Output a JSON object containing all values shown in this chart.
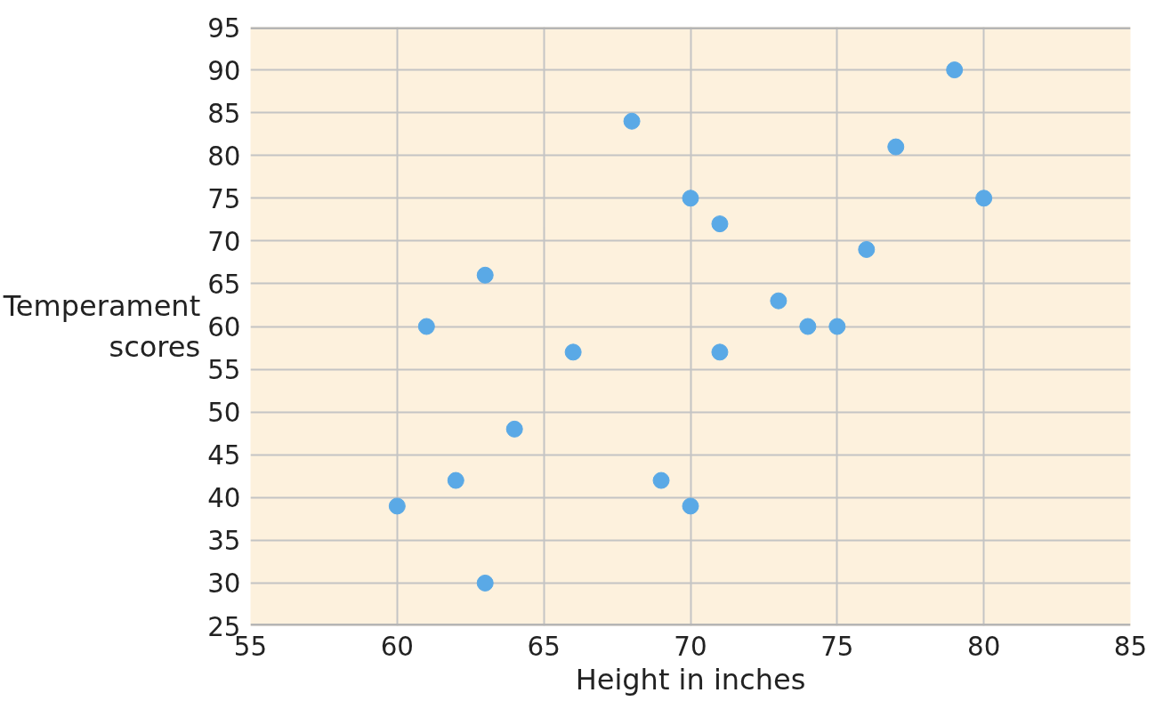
{
  "chart_data": {
    "type": "scatter",
    "xlabel": "Height in inches",
    "ylabel": "Temperament scores",
    "xlim": [
      55,
      85
    ],
    "ylim": [
      25,
      95
    ],
    "xticks": [
      55,
      60,
      65,
      70,
      75,
      80,
      85
    ],
    "yticks": [
      25,
      30,
      35,
      40,
      45,
      50,
      55,
      60,
      65,
      70,
      75,
      80,
      85,
      90,
      95
    ],
    "grid": true,
    "marker": "circle",
    "series": [
      {
        "color": "#5aa9e6",
        "x": [
          60,
          61,
          62,
          63,
          63,
          64,
          66,
          68,
          69,
          70,
          70,
          71,
          71,
          73,
          74,
          75,
          76,
          77,
          79,
          80
        ],
        "values": [
          39,
          60,
          42,
          66,
          30,
          48,
          57,
          84,
          42,
          39,
          75,
          72,
          57,
          63,
          60,
          60,
          69,
          81,
          90,
          75
        ]
      }
    ]
  }
}
